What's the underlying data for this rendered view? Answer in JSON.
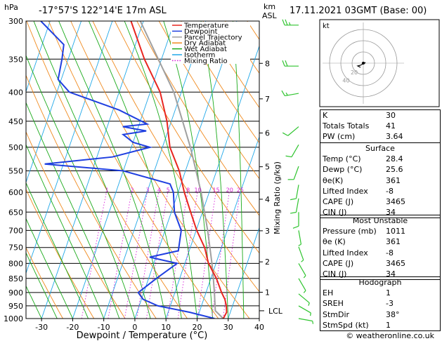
{
  "header": {
    "hpa_unit": "hPa",
    "location": "-17°57'S  122°14'E  17m  ASL",
    "km_unit": "km",
    "asl_unit": "ASL",
    "datetime": "17.11.2021  03GMT  (Base: 00)"
  },
  "legend": [
    "Temperature",
    "Dewpoint",
    "Parcel Trajectory",
    "Dry Adiabat",
    "Wet Adiabat",
    "Isotherm",
    "Mixing Ratio"
  ],
  "colors": {
    "temperature": "#e8251f",
    "dewpoint": "#1f3fe0",
    "parcel": "#a0a0a0",
    "dry_adiabat": "#f08a1e",
    "wet_adiabat": "#1aaa1a",
    "isotherm": "#20a8e8",
    "mixing_ratio": "#d81ed8",
    "wind": "#2fc42f"
  },
  "chart_data": {
    "type": "skew-t",
    "title": "-17°57'S 122°14'E 17m ASL",
    "xlabel": "Dewpoint / Temperature (°C)",
    "ylabel": "hPa",
    "right_label": "Mixing Ratio (g/kg)",
    "xlim": [
      -35,
      40
    ],
    "x_ticks": [
      -30,
      -20,
      -10,
      0,
      10,
      20,
      30,
      40
    ],
    "pressure_ticks": [
      300,
      350,
      400,
      450,
      500,
      550,
      600,
      650,
      700,
      750,
      800,
      850,
      900,
      950,
      1000
    ],
    "km_ticks": [
      {
        "km": 8,
        "p": 356
      },
      {
        "km": 7,
        "p": 411
      },
      {
        "km": 6,
        "p": 472
      },
      {
        "km": 5,
        "p": 541
      },
      {
        "km": 4,
        "p": 617
      },
      {
        "km": 3,
        "p": 701
      },
      {
        "km": 2,
        "p": 795
      },
      {
        "km": 1,
        "p": 899
      }
    ],
    "lcl": {
      "label": "LCL",
      "p": 969
    },
    "mixing_ratio_labels": [
      1,
      2,
      3,
      4,
      5,
      8,
      10,
      15,
      20,
      25
    ],
    "mixing_ratio_label_p": 594,
    "temperature": [
      {
        "p": 1000,
        "t": 28.4
      },
      {
        "p": 975,
        "t": 28.8
      },
      {
        "p": 950,
        "t": 28.0
      },
      {
        "p": 925,
        "t": 26.8
      },
      {
        "p": 900,
        "t": 25.0
      },
      {
        "p": 850,
        "t": 21.8
      },
      {
        "p": 800,
        "t": 17.6
      },
      {
        "p": 750,
        "t": 14.6
      },
      {
        "p": 700,
        "t": 10.2
      },
      {
        "p": 650,
        "t": 6.2
      },
      {
        "p": 600,
        "t": 2.0
      },
      {
        "p": 550,
        "t": -2.0
      },
      {
        "p": 500,
        "t": -7.6
      },
      {
        "p": 450,
        "t": -11.4
      },
      {
        "p": 400,
        "t": -16.8
      },
      {
        "p": 350,
        "t": -25.5
      },
      {
        "p": 300,
        "t": -34.0
      }
    ],
    "dewpoint": [
      {
        "p": 1000,
        "t": 25.6
      },
      {
        "p": 975,
        "t": 17.0
      },
      {
        "p": 950,
        "t": 6.0
      },
      {
        "p": 925,
        "t": 0.5
      },
      {
        "p": 900,
        "t": -1.8
      },
      {
        "p": 850,
        "t": 2.5
      },
      {
        "p": 800,
        "t": 7.5
      },
      {
        "p": 780,
        "t": -2.0
      },
      {
        "p": 760,
        "t": 6.5
      },
      {
        "p": 700,
        "t": 5.2
      },
      {
        "p": 650,
        "t": 1.0
      },
      {
        "p": 600,
        "t": -1.5
      },
      {
        "p": 580,
        "t": -3.5
      },
      {
        "p": 550,
        "t": -20.0
      },
      {
        "p": 535,
        "t": -46.0
      },
      {
        "p": 520,
        "t": -25.0
      },
      {
        "p": 500,
        "t": -14.0
      },
      {
        "p": 490,
        "t": -20.0
      },
      {
        "p": 475,
        "t": -24.0
      },
      {
        "p": 468,
        "t": -17.0
      },
      {
        "p": 460,
        "t": -25.0
      },
      {
        "p": 455,
        "t": -17.5
      },
      {
        "p": 430,
        "t": -28.0
      },
      {
        "p": 400,
        "t": -46.0
      },
      {
        "p": 380,
        "t": -51.0
      },
      {
        "p": 350,
        "t": -52.0
      },
      {
        "p": 330,
        "t": -53.0
      },
      {
        "p": 300,
        "t": -63.0
      }
    ],
    "parcel": [
      {
        "p": 1000,
        "t": 28.4
      },
      {
        "p": 969,
        "t": 25.0
      },
      {
        "p": 900,
        "t": 22.7
      },
      {
        "p": 850,
        "t": 20.8
      },
      {
        "p": 800,
        "t": 18.7
      },
      {
        "p": 700,
        "t": 13.7
      },
      {
        "p": 600,
        "t": 7.4
      },
      {
        "p": 500,
        "t": -1.0
      },
      {
        "p": 400,
        "t": -12.4
      },
      {
        "p": 300,
        "t": -31.0
      }
    ],
    "wind_barbs": [
      {
        "p": 305,
        "dir": 270,
        "kt": 25
      },
      {
        "p": 360,
        "dir": 270,
        "kt": 20
      },
      {
        "p": 402,
        "dir": 260,
        "kt": 15
      },
      {
        "p": 460,
        "dir": 230,
        "kt": 10
      },
      {
        "p": 495,
        "dir": 210,
        "kt": 10
      },
      {
        "p": 540,
        "dir": 200,
        "kt": 10
      },
      {
        "p": 582,
        "dir": 190,
        "kt": 10
      },
      {
        "p": 615,
        "dir": 190,
        "kt": 10
      },
      {
        "p": 650,
        "dir": 180,
        "kt": 10
      },
      {
        "p": 700,
        "dir": 170,
        "kt": 5
      },
      {
        "p": 748,
        "dir": 160,
        "kt": 5
      },
      {
        "p": 800,
        "dir": 150,
        "kt": 5
      },
      {
        "p": 850,
        "dir": 150,
        "kt": 5
      },
      {
        "p": 905,
        "dir": 130,
        "kt": 5
      },
      {
        "p": 950,
        "dir": 120,
        "kt": 5
      },
      {
        "p": 1000,
        "dir": 100,
        "kt": 5
      }
    ]
  },
  "hodograph": {
    "label": "kt",
    "ring_labels": [
      "20",
      "40"
    ],
    "points": [
      [
        0,
        0
      ],
      [
        1,
        0
      ],
      [
        1.5,
        -0.5
      ],
      [
        -2,
        1.5
      ],
      [
        -4,
        2
      ],
      [
        -2,
        3
      ]
    ]
  },
  "indices": {
    "basic": [
      {
        "label": "K",
        "value": "30"
      },
      {
        "label": "Totals Totals",
        "value": "41"
      },
      {
        "label": "PW (cm)",
        "value": "3.64"
      }
    ],
    "surface_title": "Surface",
    "surface": [
      {
        "label": "Temp (°C)",
        "value": "28.4"
      },
      {
        "label": "Dewp (°C)",
        "value": "25.6"
      },
      {
        "label": "θe(K)",
        "value": "361"
      },
      {
        "label": "Lifted Index",
        "value": "-8"
      },
      {
        "label": "CAPE (J)",
        "value": "3465"
      },
      {
        "label": "CIN (J)",
        "value": "34"
      }
    ],
    "unstable_title": "Most Unstable",
    "unstable": [
      {
        "label": "Pressure (mb)",
        "value": "1011"
      },
      {
        "label": "θe (K)",
        "value": "361"
      },
      {
        "label": "Lifted Index",
        "value": "-8"
      },
      {
        "label": "CAPE (J)",
        "value": "3465"
      },
      {
        "label": "CIN (J)",
        "value": "34"
      }
    ],
    "hodo_title": "Hodograph",
    "hodo": [
      {
        "label": "EH",
        "value": "1"
      },
      {
        "label": "SREH",
        "value": "-3"
      },
      {
        "label": "StmDir",
        "value": "38°"
      },
      {
        "label": "StmSpd (kt)",
        "value": "1"
      }
    ]
  },
  "footer": {
    "copyright": "© weatheronline.co.uk"
  }
}
